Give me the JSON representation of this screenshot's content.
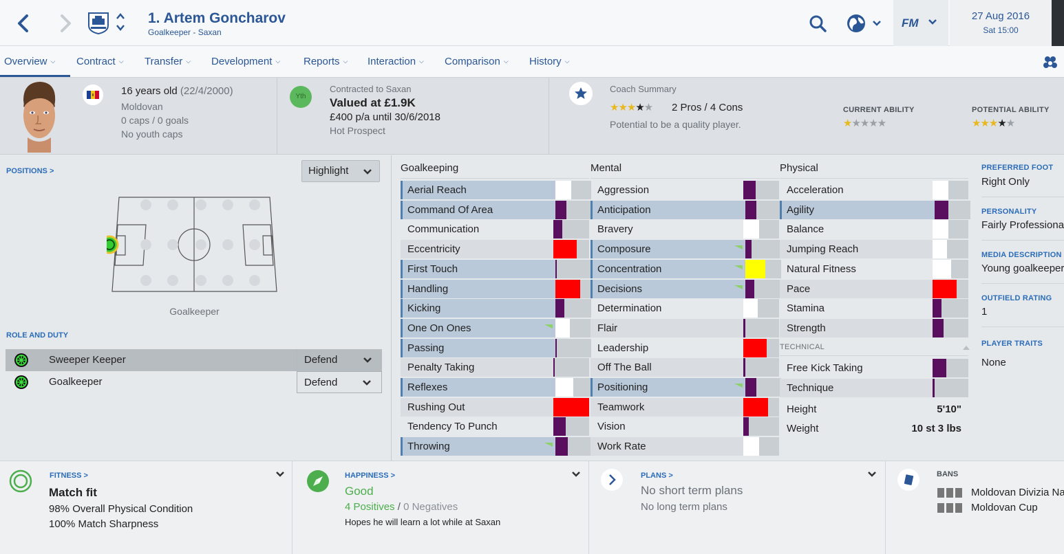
{
  "header": {
    "player_title": "1. Artem Goncharov",
    "player_subtitle": "Goalkeeper - Saxan",
    "date": "27 Aug 2016",
    "time": "Sat 15:00",
    "fm_label": "FM"
  },
  "tabs": [
    {
      "label": "Overview",
      "active": true
    },
    {
      "label": "Contract"
    },
    {
      "label": "Transfer"
    },
    {
      "label": "Development"
    },
    {
      "label": "Reports"
    },
    {
      "label": "Interaction"
    },
    {
      "label": "Comparison"
    },
    {
      "label": "History"
    }
  ],
  "profile": {
    "age": "16 years old",
    "dob": "(22/4/2000)",
    "nationality": "Moldovan",
    "caps": "0 caps / 0 goals",
    "youth_caps": "No youth caps"
  },
  "contract": {
    "yth_badge": "Yth",
    "contracted_to": "Contracted to Saxan",
    "valued": "Valued at £1.9K",
    "wage": "£400 p/a until 30/6/2018",
    "status": "Hot Prospect"
  },
  "coach": {
    "title": "Coach Summary",
    "pros_cons": "2 Pros / 4 Cons",
    "summary_stars": 3.5,
    "summary": "Potential to be a quality player.",
    "current_ability_label": "CURRENT ABILITY",
    "current_ability_stars": 1,
    "potential_ability_label": "POTENTIAL ABILITY",
    "potential_ability_stars": 3.5
  },
  "positions": {
    "link": "POSITIONS >",
    "highlight_label": "Highlight",
    "caption": "Goalkeeper"
  },
  "roles": {
    "link": "ROLE AND DUTY",
    "items": [
      {
        "name": "Sweeper Keeper",
        "duty": "Defend",
        "selected": true
      },
      {
        "name": "Goalkeeper",
        "duty": "Defend",
        "selected": false
      }
    ]
  },
  "attributes": {
    "goalkeeping_title": "Goalkeeping",
    "mental_title": "Mental",
    "physical_title": "Physical",
    "technical_title": "TECHNICAL",
    "goalkeeping": [
      {
        "name": "Aerial Reach",
        "fill": 0.45,
        "color": "#ffffff",
        "key": true
      },
      {
        "name": "Command Of Area",
        "fill": 0.3,
        "color": "#5a0e5e",
        "key": true
      },
      {
        "name": "Communication",
        "fill": 0.25,
        "color": "#5a0e5e",
        "key": false
      },
      {
        "name": "Eccentricity",
        "fill": 0.65,
        "color": "#ff0000",
        "key": false
      },
      {
        "name": "First Touch",
        "fill": 0.04,
        "color": "#5a0e5e",
        "key": true
      },
      {
        "name": "Handling",
        "fill": 0.7,
        "color": "#ff0000",
        "key": true
      },
      {
        "name": "Kicking",
        "fill": 0.25,
        "color": "#5a0e5e",
        "key": true
      },
      {
        "name": "One On Ones",
        "fill": 0.4,
        "color": "#ffffff",
        "key": true,
        "trend": "up"
      },
      {
        "name": "Passing",
        "fill": 0.04,
        "color": "#5a0e5e",
        "key": true
      },
      {
        "name": "Penalty Taking",
        "fill": 0.04,
        "color": "#5a0e5e",
        "key": false
      },
      {
        "name": "Reflexes",
        "fill": 0.5,
        "color": "#ffffff",
        "key": true
      },
      {
        "name": "Rushing Out",
        "fill": 1.0,
        "color": "#ff0000",
        "key": false
      },
      {
        "name": "Tendency To Punch",
        "fill": 0.35,
        "color": "#5a0e5e",
        "key": false
      },
      {
        "name": "Throwing",
        "fill": 0.35,
        "color": "#5a0e5e",
        "key": true,
        "trend": "up"
      }
    ],
    "mental": [
      {
        "name": "Aggression",
        "fill": 0.35,
        "color": "#5a0e5e",
        "key": false
      },
      {
        "name": "Anticipation",
        "fill": 0.3,
        "color": "#5a0e5e",
        "key": true
      },
      {
        "name": "Bravery",
        "fill": 0.45,
        "color": "#ffffff",
        "key": false
      },
      {
        "name": "Composure",
        "fill": 0.18,
        "color": "#5a0e5e",
        "key": true,
        "trend": "up"
      },
      {
        "name": "Concentration",
        "fill": 0.55,
        "color": "#ffff00",
        "key": true,
        "trend": "up"
      },
      {
        "name": "Decisions",
        "fill": 0.25,
        "color": "#5a0e5e",
        "key": true,
        "trend": "up"
      },
      {
        "name": "Determination",
        "fill": 0.4,
        "color": "#ffffff",
        "key": false
      },
      {
        "name": "Flair",
        "fill": 0.05,
        "color": "#5a0e5e",
        "key": false
      },
      {
        "name": "Leadership",
        "fill": 0.65,
        "color": "#ff0000",
        "key": false
      },
      {
        "name": "Off The Ball",
        "fill": 0.05,
        "color": "#5a0e5e",
        "key": false
      },
      {
        "name": "Positioning",
        "fill": 0.3,
        "color": "#5a0e5e",
        "key": true,
        "trend": "up"
      },
      {
        "name": "Teamwork",
        "fill": 0.7,
        "color": "#ff0000",
        "key": false
      },
      {
        "name": "Vision",
        "fill": 0.15,
        "color": "#5a0e5e",
        "key": false
      },
      {
        "name": "Work Rate",
        "fill": 0.45,
        "color": "#ffffff",
        "key": false
      }
    ],
    "physical": [
      {
        "name": "Acceleration",
        "fill": 0.45,
        "color": "#ffffff",
        "key": false
      },
      {
        "name": "Agility",
        "fill": 0.38,
        "color": "#5a0e5e",
        "key": true
      },
      {
        "name": "Balance",
        "fill": 0.45,
        "color": "#ffffff",
        "key": false
      },
      {
        "name": "Jumping Reach",
        "fill": 0.4,
        "color": "#ffffff",
        "key": false
      },
      {
        "name": "Natural Fitness",
        "fill": 0.52,
        "color": "#ffffff",
        "key": false
      },
      {
        "name": "Pace",
        "fill": 0.68,
        "color": "#ff0000",
        "key": false
      },
      {
        "name": "Stamina",
        "fill": 0.25,
        "color": "#5a0e5e",
        "key": false
      },
      {
        "name": "Strength",
        "fill": 0.3,
        "color": "#5a0e5e",
        "key": false
      }
    ],
    "technical": [
      {
        "name": "Free Kick Taking",
        "fill": 0.38,
        "color": "#5a0e5e",
        "key": false
      },
      {
        "name": "Technique",
        "fill": 0.05,
        "color": "#5a0e5e",
        "key": false
      }
    ],
    "height_label": "Height",
    "height_value": "5'10\"",
    "weight_label": "Weight",
    "weight_value": "10 st 3 lbs"
  },
  "right": {
    "preferred_foot_label": "PREFERRED FOOT",
    "preferred_foot": "Right Only",
    "personality_label": "PERSONALITY",
    "personality": "Fairly Professional",
    "media_label": "MEDIA DESCRIPTION",
    "media": "Young goalkeeper",
    "outfield_label": "OUTFIELD RATING",
    "outfield": "1",
    "traits_label": "PLAYER TRAITS",
    "traits": "None"
  },
  "bottom": {
    "fitness_label": "FITNESS >",
    "fitness_status": "Match fit",
    "fitness_condition": "98% Overall Physical Condition",
    "fitness_sharpness": "100% Match Sharpness",
    "happiness_label": "HAPPINESS >",
    "happiness_status": "Good",
    "positives": "4 Positives",
    "slash": "/",
    "negatives": "0 Negatives",
    "happiness_note": "Hopes he will learn a lot while at Saxan",
    "plans_label": "PLANS >",
    "short_plans": "No short term plans",
    "long_plans": "No long term plans",
    "bans_label": "BANS",
    "ban_1": "Moldovan Divizia Naţională",
    "ban_2": "Moldovan Cup"
  },
  "colors": {
    "accent": "#2b5797",
    "link": "#2b6cb8",
    "good": "#4cae4c",
    "attr_bad": "#ff0000",
    "attr_low": "#5a0e5e",
    "attr_mid": "#ffffff",
    "attr_ok": "#ffff00"
  }
}
